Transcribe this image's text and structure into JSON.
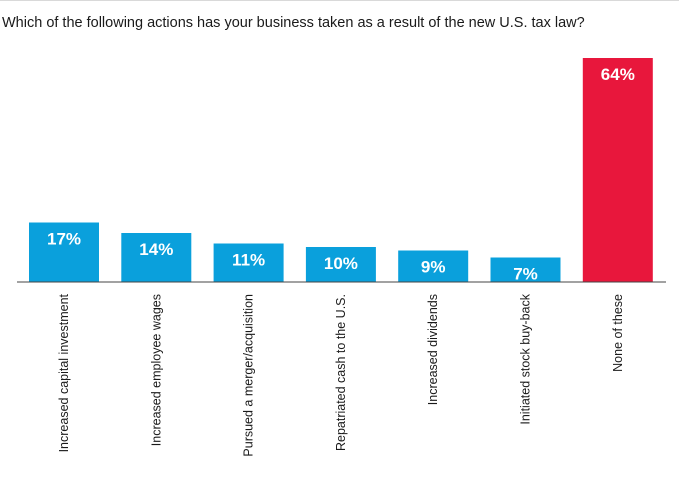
{
  "chart_data": {
    "type": "bar",
    "title": "Which of the following actions has your business taken as a result of the new U.S. tax law?",
    "categories": [
      "Increased capital investment",
      "Increased employee wages",
      "Pursued a merger/acquisition",
      "Repatriated cash to the U.S.",
      "Increased dividends",
      "Initiated stock buy-back",
      "None of these"
    ],
    "values": [
      17,
      14,
      11,
      10,
      9,
      7,
      64
    ],
    "value_labels": [
      "17%",
      "14%",
      "11%",
      "10%",
      "9%",
      "7%",
      "64%"
    ],
    "unit": "%",
    "ylim": [
      0,
      64
    ],
    "grid": false,
    "legend": "none",
    "colors": {
      "default": "#0aa0dc",
      "highlight": "#e8173c",
      "baseline": "#444444",
      "label": "#ffffff"
    },
    "highlight_index": 6
  }
}
